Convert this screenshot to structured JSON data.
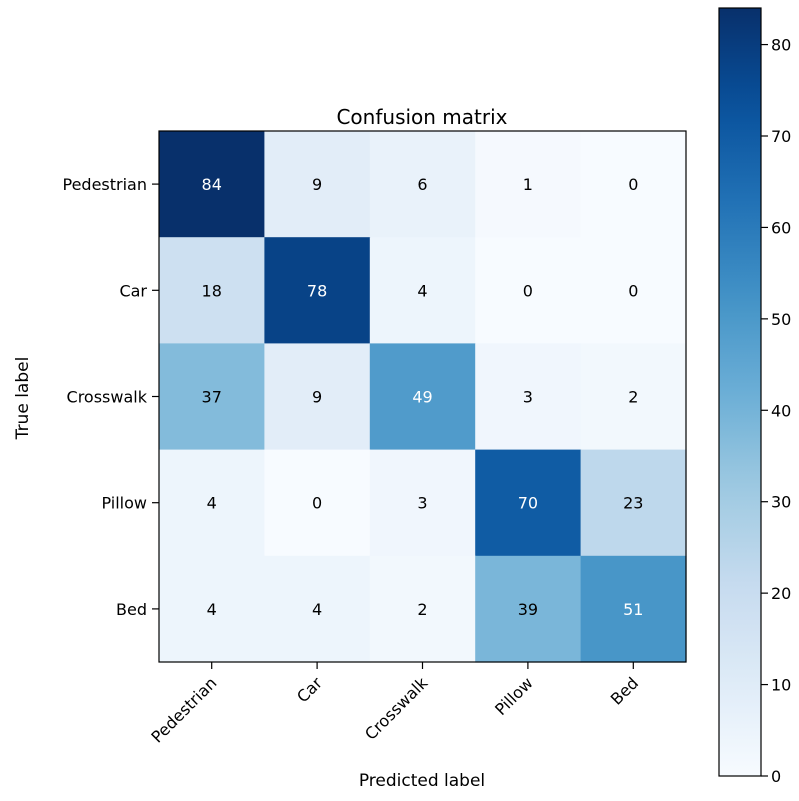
{
  "chart_data": {
    "type": "heatmap",
    "title": "Confusion matrix",
    "xlabel": "Predicted label",
    "ylabel": "True label",
    "x_categories": [
      "Pedestrian",
      "Car",
      "Crosswalk",
      "Pillow",
      "Bed"
    ],
    "y_categories": [
      "Pedestrian",
      "Car",
      "Crosswalk",
      "Pillow",
      "Bed"
    ],
    "values": [
      [
        84,
        9,
        6,
        1,
        0
      ],
      [
        18,
        78,
        4,
        0,
        0
      ],
      [
        37,
        9,
        49,
        3,
        2
      ],
      [
        4,
        0,
        3,
        70,
        23
      ],
      [
        4,
        4,
        2,
        39,
        51
      ]
    ],
    "colormap": "Blues",
    "vmin": 0,
    "vmax": 84,
    "colorbar_ticks": [
      0,
      10,
      20,
      30,
      40,
      50,
      60,
      70,
      80
    ],
    "text_color_threshold": 42,
    "text_color_dark": "#000000",
    "text_color_light": "#ffffff",
    "grid": false
  }
}
